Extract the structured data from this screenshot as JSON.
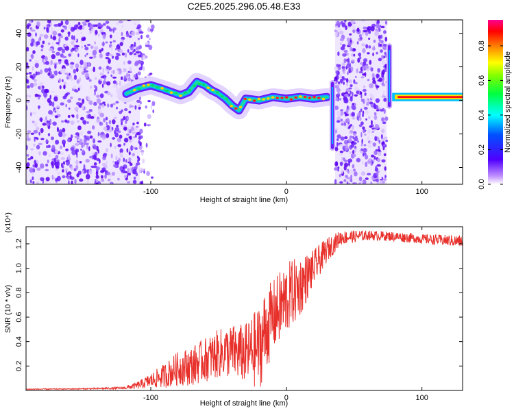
{
  "title": "C2E5.2025.296.05.48.E33",
  "chart_data": [
    {
      "type": "heatmap",
      "name": "spectrogram",
      "xlabel": "Height of straight line (km)",
      "ylabel": "Frequency (Hz)",
      "xlim": [
        -192,
        130
      ],
      "ylim": [
        -50,
        48
      ],
      "xticks": [
        -100,
        0,
        100
      ],
      "yticks": [
        -40,
        -20,
        0,
        20,
        40
      ],
      "colorbar": {
        "label": "Normalized spectral amplitude",
        "range": [
          0,
          0.95
        ],
        "ticks": [
          0.0,
          0.2,
          0.4,
          0.6,
          0.8
        ],
        "tick_labels": [
          "0.0",
          "0.2",
          "0.4",
          "0.6",
          "0.8"
        ]
      },
      "regions": [
        {
          "feature": "noise",
          "x": [
            -192,
            -105
          ]
        },
        {
          "feature": "signal ridge (~0 to 10 Hz)",
          "x": [
            -120,
            30
          ]
        },
        {
          "feature": "noise",
          "x": [
            35,
            75
          ]
        },
        {
          "feature": "constant signal (~2 Hz)",
          "x": [
            80,
            130
          ]
        }
      ],
      "ridge": {
        "x": [
          -118,
          -110,
          -100,
          -92,
          -85,
          -78,
          -72,
          -66,
          -60,
          -55,
          -50,
          -45,
          -40,
          -35,
          -30,
          -20,
          -10,
          0,
          10,
          20,
          30
        ],
        "freq": [
          4,
          7,
          9,
          7,
          5,
          3,
          5,
          11,
          9,
          6,
          4,
          1,
          -3,
          -6,
          1,
          0,
          2,
          1,
          2,
          1,
          2
        ]
      }
    },
    {
      "type": "line",
      "name": "snr",
      "xlabel": "Height of straight line (km)",
      "ylabel": "SNR (10 * v/v)",
      "multiplier": "(x10⁴)",
      "xlim": [
        -192,
        130
      ],
      "ylim": [
        0,
        1.34
      ],
      "xticks": [
        -100,
        0,
        100
      ],
      "yticks": [
        0.2,
        0.4,
        0.6,
        0.8,
        1.0,
        1.2
      ],
      "ytick_labels": [
        "0.2",
        "0.4",
        "0.6",
        "0.8",
        "1.0",
        "1.2"
      ],
      "color": "#e8302b",
      "x": [
        -192,
        -160,
        -140,
        -120,
        -110,
        -100,
        -90,
        -80,
        -70,
        -60,
        -50,
        -40,
        -30,
        -20,
        -15,
        -10,
        0,
        10,
        20,
        30,
        40,
        60,
        80,
        100,
        130
      ],
      "y": [
        0.01,
        0.012,
        0.015,
        0.02,
        0.04,
        0.08,
        0.12,
        0.18,
        0.2,
        0.25,
        0.3,
        0.32,
        0.3,
        0.35,
        0.5,
        0.6,
        0.75,
        0.85,
        1.0,
        1.15,
        1.25,
        1.27,
        1.26,
        1.24,
        1.22
      ],
      "spread": [
        0.004,
        0.004,
        0.006,
        0.01,
        0.03,
        0.06,
        0.1,
        0.14,
        0.16,
        0.18,
        0.2,
        0.22,
        0.25,
        0.35,
        0.35,
        0.3,
        0.3,
        0.25,
        0.15,
        0.1,
        0.06,
        0.04,
        0.04,
        0.04,
        0.05
      ]
    }
  ]
}
